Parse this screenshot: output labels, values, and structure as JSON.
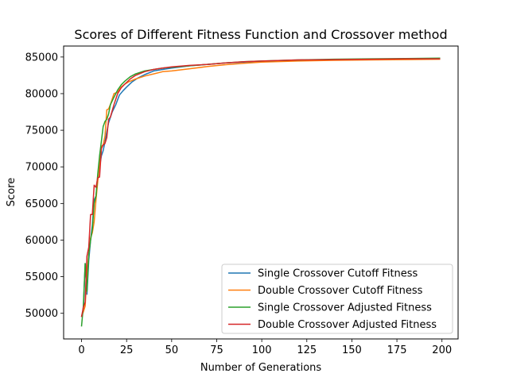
{
  "chart_data": {
    "type": "line",
    "title": "Scores of Different Fitness Function and Crossover method",
    "xlabel": "Number of Generations",
    "ylabel": "Score",
    "xlim": [
      -9.95,
      208.95
    ],
    "ylim": [
      46500,
      86500
    ],
    "xticks": [
      0,
      25,
      50,
      75,
      100,
      125,
      150,
      175,
      200
    ],
    "yticks": [
      50000,
      55000,
      60000,
      65000,
      70000,
      75000,
      80000,
      85000
    ],
    "grid": false,
    "legend_position": "lower-right",
    "series": [
      {
        "name": "Single Crossover Cutoff Fitness",
        "color": "#1f77b4",
        "x": [
          0,
          1,
          2,
          3,
          4,
          5,
          6,
          7,
          8,
          9,
          10,
          11,
          12,
          13,
          14,
          15,
          17,
          19,
          21,
          23,
          25,
          28,
          31,
          35,
          40,
          45,
          50,
          60,
          70,
          80,
          90,
          100,
          120,
          140,
          160,
          180,
          199
        ],
        "y": [
          49500,
          50500,
          56800,
          52600,
          57200,
          60000,
          62000,
          65500,
          66000,
          68500,
          70000,
          71500,
          72200,
          73400,
          74800,
          76000,
          77500,
          78500,
          79800,
          80400,
          80900,
          81600,
          82100,
          82600,
          83100,
          83300,
          83500,
          83800,
          84000,
          84200,
          84300,
          84400,
          84550,
          84650,
          84700,
          84750,
          84800
        ]
      },
      {
        "name": "Double Crossover Cutoff Fitness",
        "color": "#ff7f0e",
        "x": [
          0,
          1,
          2,
          3,
          4,
          5,
          6,
          7,
          8,
          9,
          10,
          11,
          12,
          13,
          14,
          15,
          16,
          18,
          20,
          22,
          24,
          26,
          30,
          35,
          40,
          45,
          50,
          60,
          70,
          80,
          90,
          100,
          120,
          140,
          160,
          180,
          199
        ],
        "y": [
          49600,
          50200,
          51000,
          55500,
          58000,
          60300,
          61000,
          62500,
          65500,
          68000,
          70500,
          72800,
          73000,
          74200,
          77800,
          77900,
          78500,
          80000,
          80200,
          80900,
          81300,
          81600,
          82000,
          82400,
          82700,
          83000,
          83100,
          83400,
          83700,
          83950,
          84150,
          84300,
          84450,
          84550,
          84600,
          84650,
          84700
        ]
      },
      {
        "name": "Single Crossover Adjusted Fitness",
        "color": "#2ca02c",
        "x": [
          0,
          1,
          2,
          3,
          4,
          5,
          6,
          7,
          8,
          9,
          10,
          11,
          12,
          13,
          14,
          15,
          16,
          18,
          20,
          22,
          24,
          27,
          30,
          35,
          40,
          45,
          50,
          60,
          70,
          80,
          90,
          100,
          120,
          140,
          160,
          180,
          199
        ],
        "y": [
          48200,
          51000,
          56800,
          53000,
          58000,
          60000,
          61500,
          65000,
          66000,
          69000,
          71500,
          73500,
          75500,
          76200,
          76500,
          77200,
          78500,
          79500,
          80500,
          81200,
          81700,
          82300,
          82700,
          83100,
          83300,
          83500,
          83600,
          83800,
          84000,
          84200,
          84350,
          84450,
          84600,
          84700,
          84750,
          84800,
          84850
        ]
      },
      {
        "name": "Double Crossover Adjusted Fitness",
        "color": "#d62728",
        "x": [
          0,
          1,
          2,
          3,
          4,
          5,
          6,
          7,
          8,
          9,
          10,
          11,
          12,
          13,
          14,
          15,
          16,
          18,
          20,
          22,
          24,
          27,
          30,
          35,
          40,
          45,
          50,
          60,
          70,
          80,
          90,
          100,
          120,
          140,
          160,
          180,
          199
        ],
        "y": [
          49500,
          50800,
          51500,
          57800,
          59000,
          63500,
          63500,
          67500,
          67200,
          68500,
          68600,
          72500,
          73000,
          73200,
          74000,
          76500,
          76800,
          78500,
          80000,
          80800,
          81300,
          82000,
          82500,
          83000,
          83300,
          83500,
          83650,
          83850,
          84000,
          84200,
          84350,
          84450,
          84600,
          84650,
          84700,
          84750,
          84750
        ]
      }
    ]
  }
}
